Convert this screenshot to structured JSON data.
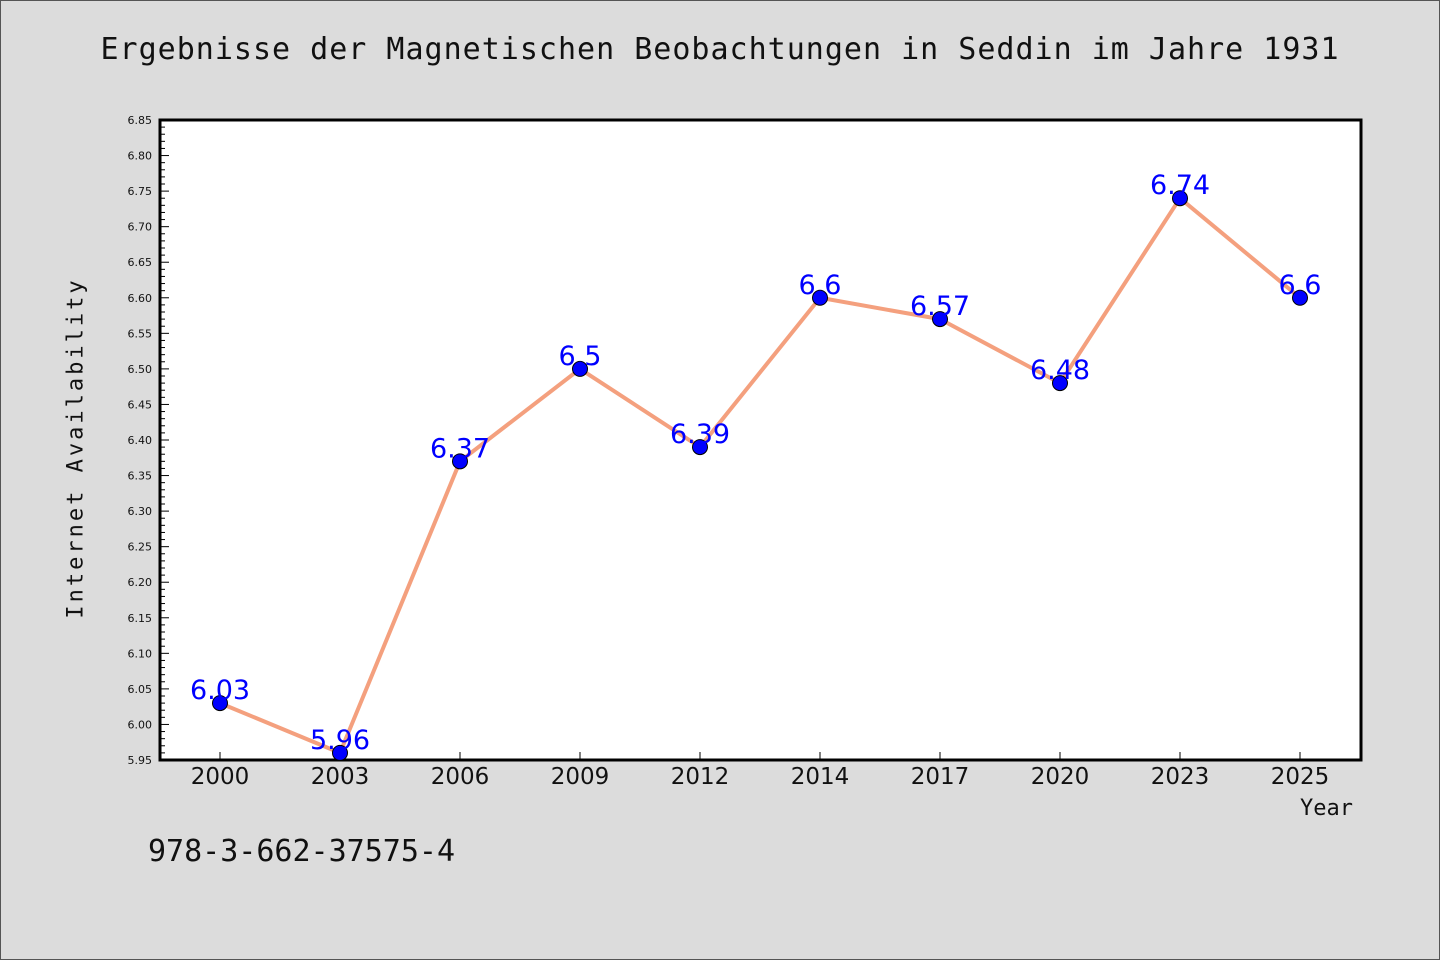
{
  "chart_data": {
    "type": "line",
    "title": "Ergebnisse der Magnetischen Beobachtungen in Seddin im Jahre 1931",
    "xlabel": "Year",
    "ylabel": "Internet Availability",
    "categories": [
      "2000",
      "2003",
      "2006",
      "2009",
      "2012",
      "2014",
      "2017",
      "2020",
      "2023",
      "2025"
    ],
    "series": [
      {
        "values": [
          6.03,
          5.96,
          6.37,
          6.5,
          6.39,
          6.6,
          6.57,
          6.48,
          6.74,
          6.6
        ],
        "data_labels": [
          "6.03",
          "5.96",
          "6.37",
          "6.5",
          "6.39",
          "6.6",
          "6.57",
          "6.48",
          "6.74",
          "6.6"
        ],
        "line_color": "#f4a07e",
        "marker_color": "#0000ff"
      }
    ],
    "ylim": [
      5.95,
      6.85
    ],
    "yticks": [
      "5.95",
      "6.00",
      "6.05",
      "6.10",
      "6.15",
      "6.20",
      "6.25",
      "6.30",
      "6.35",
      "6.40",
      "6.45",
      "6.50",
      "6.55",
      "6.60",
      "6.65",
      "6.70",
      "6.75",
      "6.80",
      "6.85"
    ],
    "grid": false,
    "legend": "none"
  },
  "footer": {
    "isbn": "978-3-662-37575-4"
  },
  "colors": {
    "background": "#dcdcdc",
    "plot_background": "#ffffff",
    "axis": "#000000",
    "data_label": "#0000ff"
  }
}
